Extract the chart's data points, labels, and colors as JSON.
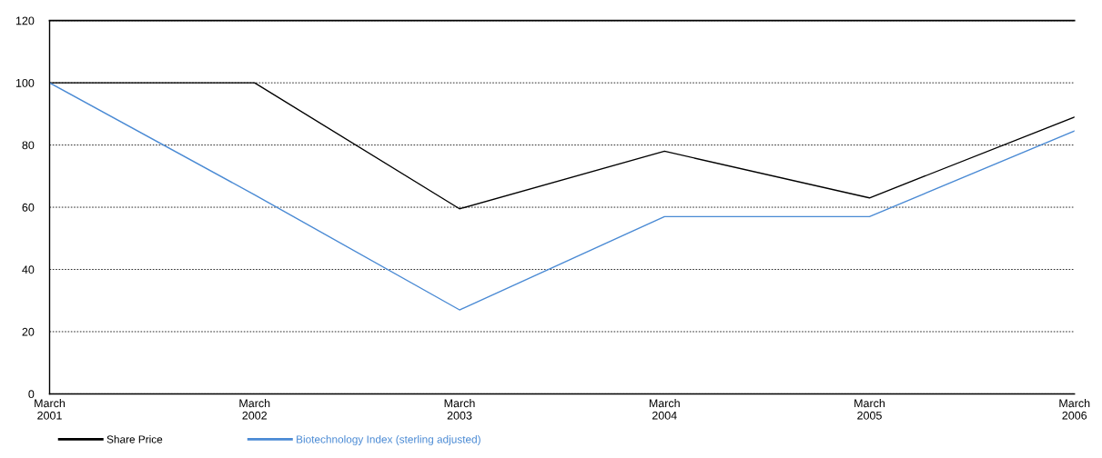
{
  "chart_data": {
    "type": "line",
    "categories": [
      "March\n2001",
      "March\n2002",
      "March\n2003",
      "March\n2004",
      "March\n2005",
      "March\n2006"
    ],
    "series": [
      {
        "name": "Share Price",
        "color": "#000000",
        "values": [
          100,
          100,
          59.5,
          78,
          63,
          89
        ]
      },
      {
        "name": "Biotechnology Index (sterling adjusted)",
        "color": "#4a8ad4",
        "values": [
          100,
          64,
          27,
          57,
          57,
          84.5
        ]
      }
    ],
    "ylim": [
      0,
      120
    ],
    "yticks": [
      0,
      20,
      40,
      60,
      80,
      100,
      120
    ],
    "grid": "y",
    "legend": "bottom",
    "marker": "none",
    "line_style": "solid"
  }
}
